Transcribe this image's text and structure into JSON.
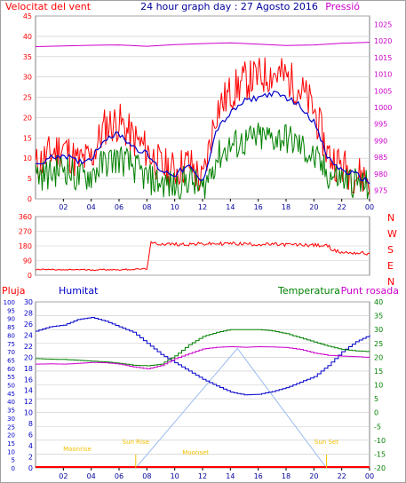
{
  "header": {
    "wind_label": "Velocitat del vent",
    "title": "24 hour graph day : 27 Agosto 2016",
    "pressure_label": "Pressió"
  },
  "labels": {
    "rain": "Pluja",
    "humidity": "Humitat",
    "temperature": "Temperatura",
    "dewpoint": "Punt rosada",
    "sunrise": "Sun Rise",
    "sunset": "Sun Set",
    "moonrise": "Moonrise",
    "moonset": "Moonset"
  },
  "colors": {
    "red": "#ff0000",
    "blue": "#0000cc",
    "green": "#008000",
    "magenta": "#cc00cc",
    "lightblue": "#99bbee",
    "gold": "#f0c000",
    "border": "#a0a0a0",
    "grid": "#c8c8c8"
  },
  "chart_data": [
    {
      "type": "line",
      "name": "wind_speed_and_pressure",
      "x_ticks": [
        "02",
        "04",
        "06",
        "08",
        "10",
        "12",
        "14",
        "16",
        "18",
        "20",
        "22",
        "00"
      ],
      "ylim": [
        0,
        45
      ],
      "y_ticks": [
        "0",
        "5",
        "10",
        "15",
        "20",
        "25",
        "30",
        "35",
        "40",
        "45"
      ],
      "y2lim": [
        972.5,
        1027.5
      ],
      "y2_ticks": [
        "975",
        "980",
        "985",
        "990",
        "995",
        "1000",
        "1005",
        "1010",
        "1015",
        "1020",
        "1025"
      ],
      "series": [
        {
          "color": "#ff0000",
          "x": [
            0,
            1,
            2,
            3,
            4,
            5,
            6,
            7,
            8,
            9,
            10,
            11,
            12,
            13,
            14,
            15,
            16,
            17,
            18,
            19,
            20,
            21,
            22,
            23,
            24
          ],
          "values": [
            8,
            11,
            13,
            9,
            10,
            18,
            19,
            15,
            12,
            8,
            7,
            9,
            4,
            22,
            26,
            29,
            30,
            31,
            30,
            27,
            22,
            11,
            8,
            6,
            5
          ]
        },
        {
          "color": "#0000cc",
          "x": [
            0,
            1,
            2,
            3,
            4,
            5,
            6,
            7,
            8,
            9,
            10,
            11,
            12,
            13,
            14,
            15,
            16,
            17,
            18,
            19,
            20,
            21,
            22,
            23,
            24
          ],
          "values": [
            8,
            10,
            11,
            9,
            10,
            15,
            16,
            13,
            11,
            7,
            6,
            8,
            4,
            17,
            21,
            24,
            25,
            26,
            25,
            23,
            19,
            10,
            7,
            6,
            4
          ]
        },
        {
          "color": "#008000",
          "x": [
            0,
            1,
            2,
            3,
            4,
            5,
            6,
            7,
            8,
            9,
            10,
            11,
            12,
            13,
            14,
            15,
            16,
            17,
            18,
            19,
            20,
            21,
            22,
            23,
            24
          ],
          "values": [
            6,
            6,
            8,
            5,
            6,
            9,
            10,
            8,
            5,
            4,
            3,
            5,
            2,
            10,
            13,
            14,
            15,
            15,
            15,
            13,
            10,
            6,
            5,
            4,
            3
          ]
        },
        {
          "color": "#cc00cc",
          "axis": "y2",
          "x": [
            0,
            2,
            4,
            6,
            8,
            10,
            12,
            14,
            16,
            18,
            20,
            22,
            24
          ],
          "values": [
            1018.3,
            1018.5,
            1018.7,
            1018.8,
            1018.4,
            1018.9,
            1019.2,
            1019.4,
            1019.0,
            1018.6,
            1018.8,
            1019.3,
            1019.6
          ]
        }
      ]
    },
    {
      "type": "line",
      "name": "wind_direction",
      "x_ticks": [
        "02",
        "04",
        "06",
        "08",
        "10",
        "12",
        "14",
        "16",
        "18",
        "20",
        "22",
        "00"
      ],
      "ylim": [
        0,
        360
      ],
      "y_ticks": [
        "0",
        "90",
        "180",
        "270",
        "360"
      ],
      "compass": [
        "N",
        "W",
        "S",
        "E",
        "N"
      ],
      "series": [
        {
          "color": "#ff0000",
          "x": [
            0,
            1,
            2,
            3,
            4,
            5,
            6,
            7,
            8,
            8.3,
            10,
            12,
            14,
            16,
            18,
            20,
            21,
            21.5,
            22,
            23,
            24
          ],
          "values": [
            35,
            35,
            32,
            35,
            33,
            35,
            34,
            36,
            40,
            195,
            190,
            192,
            195,
            190,
            188,
            185,
            180,
            150,
            140,
            138,
            132
          ]
        }
      ]
    },
    {
      "type": "line",
      "name": "rain_humidity_temperature_dewpoint",
      "x_ticks": [
        "02",
        "04",
        "06",
        "08",
        "10",
        "12",
        "14",
        "16",
        "18",
        "20",
        "22",
        "00"
      ],
      "y_rain_ticks": [
        "0",
        "5",
        "10",
        "15",
        "20",
        "25",
        "30",
        "35",
        "40",
        "45",
        "50",
        "55",
        "60",
        "65",
        "70",
        "75",
        "80",
        "85",
        "90",
        "95",
        "100"
      ],
      "y_hum_ticks": [
        "0",
        "2",
        "4",
        "6",
        "8",
        "10",
        "12",
        "14",
        "16",
        "18",
        "20",
        "22",
        "24",
        "26",
        "28",
        "30"
      ],
      "y_temp_ticks": [
        "-20",
        "-15",
        "-10",
        "-5",
        "0",
        "5",
        "10",
        "15",
        "20",
        "25",
        "30",
        "35",
        "40"
      ],
      "series": [
        {
          "color": "#0000cc",
          "axis": "humidity",
          "x": [
            0,
            1,
            2,
            3,
            4,
            5,
            6,
            7,
            8,
            9,
            10,
            11,
            12,
            13,
            14,
            15,
            16,
            17,
            18,
            19,
            20,
            21,
            22,
            23,
            24
          ],
          "values": [
            24.7,
            25.5,
            25.8,
            26.8,
            27.2,
            26.5,
            25.5,
            24.5,
            22.5,
            20.5,
            19.0,
            17.5,
            16.0,
            14.8,
            13.7,
            13.2,
            13.3,
            13.8,
            14.5,
            15.5,
            16.5,
            18.5,
            21.0,
            22.8,
            24.0
          ]
        },
        {
          "color": "#008000",
          "axis": "temperature",
          "x": [
            0,
            1,
            2,
            3,
            4,
            5,
            6,
            7,
            8,
            9,
            10,
            11,
            12,
            13,
            14,
            15,
            16,
            17,
            18,
            19,
            20,
            21,
            22,
            23,
            24
          ],
          "values": [
            19.5,
            19.3,
            19.2,
            18.9,
            18.6,
            18.3,
            17.8,
            17.1,
            16.9,
            17.5,
            20.5,
            24.5,
            27.5,
            29.0,
            30.0,
            30.0,
            30.0,
            29.5,
            28.5,
            27.0,
            25.5,
            24.0,
            22.8,
            22.3,
            22.0
          ]
        },
        {
          "color": "#cc00cc",
          "axis": "temperature",
          "x": [
            0,
            1,
            2,
            3,
            4,
            5,
            6,
            7,
            8,
            9,
            10,
            11,
            12,
            13,
            14,
            15,
            16,
            17,
            18,
            19,
            20,
            21,
            22,
            23,
            24
          ],
          "values": [
            17.5,
            17.6,
            17.5,
            17.8,
            18.1,
            18.0,
            17.5,
            16.5,
            15.8,
            17.0,
            19.5,
            21.3,
            23.0,
            23.6,
            23.8,
            23.6,
            23.8,
            23.7,
            23.5,
            22.8,
            21.5,
            20.7,
            20.4,
            20.2,
            19.9
          ]
        },
        {
          "color": "#99bbee",
          "axis": "rain",
          "x": [
            7.2,
            14.5,
            20.9
          ],
          "values": [
            0,
            72,
            0
          ]
        },
        {
          "color": "#ff0000",
          "axis": "rain",
          "x": [
            0,
            24
          ],
          "values": [
            0,
            0
          ]
        }
      ],
      "events": [
        {
          "label": "moonrise",
          "x": 3.0
        },
        {
          "label": "sunrise",
          "x": 7.2
        },
        {
          "label": "moonset",
          "x": 11.5
        },
        {
          "label": "sunset",
          "x": 20.9
        }
      ]
    }
  ]
}
